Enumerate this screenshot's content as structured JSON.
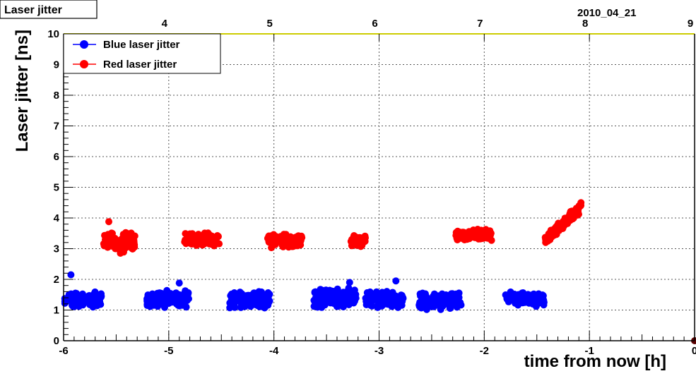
{
  "chart_data": {
    "type": "scatter",
    "title": "Laser jitter",
    "top_right_label": "2010_04_21",
    "xlabel": "time from now [h]",
    "ylabel": "Laser jitter [ns]",
    "xlim": [
      -6,
      0
    ],
    "ylim": [
      0,
      10
    ],
    "x_ticks": [
      "-6",
      "-5",
      "-4",
      "-3",
      "-2",
      "-1",
      "0"
    ],
    "y_ticks": [
      "0",
      "1",
      "2",
      "3",
      "4",
      "5",
      "6",
      "7",
      "8",
      "9",
      "10"
    ],
    "top_axis_ticks": [
      {
        "label": "4",
        "x": -5.0
      },
      {
        "label": "5",
        "x": -4.0
      },
      {
        "label": "6",
        "x": -3.0
      },
      {
        "label": "7",
        "x": -2.0
      },
      {
        "label": "8",
        "x": -1.0
      },
      {
        "label": "9",
        "x": 0.0
      }
    ],
    "grid": true,
    "legend_position": "top-left",
    "colors": {
      "blue": "#0000ff",
      "red": "#ff0000",
      "top_axis": "#cccc00",
      "end_marker": "#5a0000"
    },
    "series": [
      {
        "name": "Blue laser jitter",
        "color": "#0000ff",
        "clusters": [
          {
            "x_range": [
              -5.99,
              -5.64
            ],
            "y_mean": 1.35,
            "y_spread": 0.3,
            "outliers": [
              [
                -5.93,
                2.15
              ]
            ]
          },
          {
            "x_range": [
              -5.21,
              -4.81
            ],
            "y_mean": 1.35,
            "y_spread": 0.3,
            "outliers": [
              [
                -4.9,
                1.88
              ]
            ]
          },
          {
            "x_range": [
              -4.42,
              -4.03
            ],
            "y_mean": 1.35,
            "y_spread": 0.3,
            "outliers": []
          },
          {
            "x_range": [
              -3.62,
              -3.22
            ],
            "y_mean": 1.4,
            "y_spread": 0.35,
            "outliers": [
              [
                -3.28,
                1.9
              ]
            ]
          },
          {
            "x_range": [
              -3.13,
              -2.77
            ],
            "y_mean": 1.35,
            "y_spread": 0.3,
            "outliers": [
              [
                -2.84,
                1.95
              ]
            ]
          },
          {
            "x_range": [
              -2.62,
              -2.22
            ],
            "y_mean": 1.3,
            "y_spread": 0.3,
            "outliers": []
          },
          {
            "x_range": [
              -1.8,
              -1.43
            ],
            "y_mean": 1.35,
            "y_spread": 0.25,
            "outliers": []
          }
        ]
      },
      {
        "name": "Red laser jitter",
        "color": "#ff0000",
        "clusters": [
          {
            "x_range": [
              -5.62,
              -5.32
            ],
            "y_mean": 3.2,
            "y_spread": 0.35,
            "outliers": [
              [
                -5.57,
                3.88
              ],
              [
                -5.46,
                2.85
              ]
            ]
          },
          {
            "x_range": [
              -4.85,
              -4.52
            ],
            "y_mean": 3.3,
            "y_spread": 0.25,
            "outliers": []
          },
          {
            "x_range": [
              -4.06,
              -3.73
            ],
            "y_mean": 3.25,
            "y_spread": 0.25,
            "outliers": []
          },
          {
            "x_range": [
              -3.27,
              -3.13
            ],
            "y_mean": 3.25,
            "y_spread": 0.2,
            "outliers": []
          },
          {
            "x_range": [
              -2.27,
              -1.93
            ],
            "y_mean": 3.45,
            "y_spread": 0.2,
            "outliers": []
          },
          {
            "x_range": [
              -1.42,
              -1.08
            ],
            "y_start": 3.3,
            "y_end": 4.35,
            "y_spread": 0.2,
            "outliers": []
          }
        ]
      }
    ]
  }
}
